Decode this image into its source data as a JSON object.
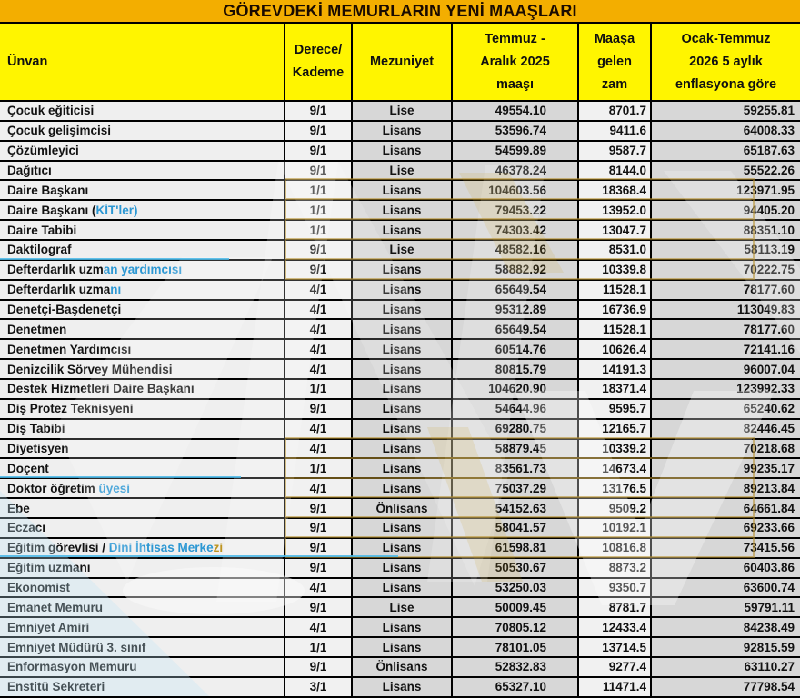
{
  "colors": {
    "title_bg": "#F3AE00",
    "header_bg": "#FFF500",
    "text": "#121212",
    "gold_text": "#BE9420",
    "blue_text": "#2B97D3",
    "col_gray": "#D7D7D7",
    "col_light": "#F1F1F1",
    "unvan_bg": "#EFEFEF",
    "border": "#000000",
    "watermark_gold": "#B8902A",
    "watermark_cyan": "#49B8E8"
  },
  "watermark": "ntv-logo",
  "chart_data": {
    "type": "table",
    "title": "GÖREVDEKİ MEMURLARIN YENİ MAAŞLARI",
    "column_keys": [
      "unvan",
      "derece",
      "mezuniyet",
      "maas_2025",
      "zam",
      "ocak_2026"
    ],
    "columns": [
      "Ünvan",
      "Derece/Kademe",
      "Mezuniyet",
      "Temmuz - Aralık 2025 maaşı",
      "Maaşa gelen zam",
      "Ocak-Temmuz 2026 5 aylık enflasyona göre"
    ],
    "header_lines": [
      [
        "Ünvan"
      ],
      [
        "Derece/",
        "Kademe"
      ],
      [
        "Mezuniyet"
      ],
      [
        "Temmuz -",
        "Aralık 2025",
        "maaşı"
      ],
      [
        "Maaşa",
        "gelen",
        "zam"
      ],
      [
        "Ocak-Temmuz",
        "2026 5 aylık",
        "enflasyona göre"
      ]
    ],
    "rows": [
      {
        "unvan_parts": [
          {
            "t": "Çocuk eğiticisi"
          }
        ],
        "derece": "9/1",
        "mezuniyet": "Lise",
        "maas_2025": "49554.10",
        "zam": "8701.7",
        "ocak_2026": "59255.81"
      },
      {
        "unvan_parts": [
          {
            "t": "Çocuk gelişimcisi"
          }
        ],
        "derece": "9/1",
        "mezuniyet": "Lisans",
        "maas_2025": "53596.74",
        "zam": "9411.6",
        "ocak_2026": "64008.33"
      },
      {
        "unvan_parts": [
          {
            "t": "Çözümleyici"
          }
        ],
        "derece": "9/1",
        "mezuniyet": "Lisans",
        "maas_2025": "54599.89",
        "zam": "9587.7",
        "ocak_2026": "65187.63"
      },
      {
        "unvan_parts": [
          {
            "t": "Dağıtıcı"
          }
        ],
        "derece": "9/1",
        "mezuniyet": "Lise",
        "maas_2025": "46378.24",
        "zam": "8144.0",
        "ocak_2026": "55522.26",
        "cell_colors": {
          "maas_2025": "gold"
        }
      },
      {
        "unvan_parts": [
          {
            "t": "Daire Başkanı"
          }
        ],
        "derece": "1/1",
        "mezuniyet": "Lisans",
        "maas_2025": "104603.56",
        "zam": "18368.4",
        "ocak_2026": "123971.95",
        "cell_colors": {
          "mezuniyet": "gold",
          "maas_2025": "gold"
        }
      },
      {
        "unvan_parts": [
          {
            "t": "Daire Başkanı ("
          },
          {
            "t": "KİT'ler)",
            "c": "blue"
          }
        ],
        "derece": "1/1",
        "mezuniyet": "Lisans",
        "maas_2025": "79453.22",
        "zam": "13952.0",
        "ocak_2026": "94405.20"
      },
      {
        "unvan_parts": [
          {
            "t": "Daire Tabibi"
          }
        ],
        "derece": "1/1",
        "mezuniyet": "Lisans",
        "maas_2025": "74303.42",
        "zam": "13047.7",
        "ocak_2026": "88351.10",
        "cell_colors": {
          "zam": "gold"
        }
      },
      {
        "unvan_parts": [
          {
            "t": "Daktilograf"
          }
        ],
        "derece": "9/1",
        "mezuniyet": "Lise",
        "maas_2025": "48582.16",
        "zam": "8531.0",
        "ocak_2026": "58113.19",
        "cell_colors": {
          "derece": "gold",
          "zam": "gold"
        }
      },
      {
        "unvan_parts": [
          {
            "t": "Defterdarlık uzm"
          },
          {
            "t": "an yardımcısı",
            "c": "blue"
          }
        ],
        "derece": "9/1",
        "mezuniyet": "Lisans",
        "maas_2025": "58882.92",
        "zam": "10339.8",
        "ocak_2026": "70222.75",
        "cell_colors": {
          "derece": "gold",
          "zam": "gold"
        }
      },
      {
        "unvan_parts": [
          {
            "t": "Defterdarlık uzma"
          },
          {
            "t": "nı",
            "c": "blue"
          }
        ],
        "derece": "4/1",
        "mezuniyet": "Lisans",
        "maas_2025": "65649.54",
        "zam": "11528.1",
        "ocak_2026": "78177.60"
      },
      {
        "unvan_parts": [
          {
            "t": "Denetçi-Başdenetçi"
          }
        ],
        "derece": "4/1",
        "mezuniyet": "Lisans",
        "maas_2025": "95312.89",
        "zam": "16736.9",
        "ocak_2026": "113049.83"
      },
      {
        "unvan_parts": [
          {
            "t": "Denetmen"
          }
        ],
        "derece": "4/1",
        "mezuniyet": "Lisans",
        "maas_2025": "65649.54",
        "zam": "11528.1",
        "ocak_2026": "78177.60"
      },
      {
        "unvan_parts": [
          {
            "t": "Denetmen Yardımcısı"
          }
        ],
        "derece": "4/1",
        "mezuniyet": "Lisans",
        "maas_2025": "60514.76",
        "zam": "10626.4",
        "ocak_2026": "72141.16"
      },
      {
        "unvan_parts": [
          {
            "t": "Denizcilik Sörvey Mühendisi"
          }
        ],
        "derece": "4/1",
        "mezuniyet": "Lisans",
        "maas_2025": "80815.79",
        "zam": "14191.3",
        "ocak_2026": "96007.04"
      },
      {
        "unvan_parts": [
          {
            "t": "Destek Hizmetleri Daire Başkanı"
          }
        ],
        "derece": "1/1",
        "mezuniyet": "Lisans",
        "maas_2025": "104620.90",
        "zam": "18371.4",
        "ocak_2026": "123992.33"
      },
      {
        "unvan_parts": [
          {
            "t": "Diş Protez Teknisyeni"
          }
        ],
        "derece": "9/1",
        "mezuniyet": "Lisans",
        "maas_2025": "54644.96",
        "zam": "9595.7",
        "ocak_2026": "65240.62"
      },
      {
        "unvan_parts": [
          {
            "t": "Diş Tabibi"
          }
        ],
        "derece": "4/1",
        "mezuniyet": "Lisans",
        "maas_2025": "69280.75",
        "zam": "12165.7",
        "ocak_2026": "82446.45"
      },
      {
        "unvan_parts": [
          {
            "t": "Diyetisyen"
          }
        ],
        "derece": "4/1",
        "mezuniyet": "Lisans",
        "maas_2025": "58879.45",
        "zam": "10339.2",
        "ocak_2026": "70218.68",
        "cell_colors": {
          "maas_2025": "gold"
        }
      },
      {
        "unvan_parts": [
          {
            "t": "Doçent"
          }
        ],
        "derece": "1/1",
        "mezuniyet": "Lisans",
        "maas_2025": "83561.73",
        "zam": "14673.4",
        "ocak_2026": "99235.17",
        "cell_colors": {
          "maas_2025": "gold"
        }
      },
      {
        "unvan_parts": [
          {
            "t": "Doktor öğretim "
          },
          {
            "t": "üyesi",
            "c": "blue"
          }
        ],
        "derece": "4/1",
        "mezuniyet": "Lisans",
        "maas_2025": "75037.29",
        "zam": "13176.5",
        "ocak_2026": "89213.84",
        "cell_colors": {
          "zam": "gold"
        }
      },
      {
        "unvan_parts": [
          {
            "t": "Ebe"
          }
        ],
        "derece": "9/1",
        "mezuniyet": "Önlisans",
        "maas_2025": "54152.63",
        "zam": "9509.2",
        "ocak_2026": "64661.84",
        "cell_colors": {
          "derece": "gold",
          "mezuniyet": "gold",
          "zam": "gold"
        }
      },
      {
        "unvan_parts": [
          {
            "t": "Eczacı"
          }
        ],
        "derece": "9/1",
        "mezuniyet": "Lisans",
        "maas_2025": "58041.57",
        "zam": "10192.1",
        "ocak_2026": "69233.66",
        "cell_colors": {
          "derece": "gold",
          "zam": "gold"
        }
      },
      {
        "unvan_parts": [
          {
            "t": "Eğitim görevlisi / "
          },
          {
            "t": "Dini İhtisas Merke",
            "c": "blue"
          },
          {
            "t": "zi",
            "c": "gold"
          }
        ],
        "derece": "9/1",
        "mezuniyet": "Lisans",
        "maas_2025": "61598.81",
        "zam": "10816.8",
        "ocak_2026": "73415.56"
      },
      {
        "unvan_parts": [
          {
            "t": "Eğitim uzmanı"
          }
        ],
        "derece": "9/1",
        "mezuniyet": "Lisans",
        "maas_2025": "50530.67",
        "zam": "8873.2",
        "ocak_2026": "60403.86"
      },
      {
        "unvan_parts": [
          {
            "t": "Ekonomist"
          }
        ],
        "derece": "4/1",
        "mezuniyet": "Lisans",
        "maas_2025": "53250.03",
        "zam": "9350.7",
        "ocak_2026": "63600.74"
      },
      {
        "unvan_parts": [
          {
            "t": "Emanet Memuru"
          }
        ],
        "derece": "9/1",
        "mezuniyet": "Lise",
        "maas_2025": "50009.45",
        "zam": "8781.7",
        "ocak_2026": "59791.11"
      },
      {
        "unvan_parts": [
          {
            "t": "Emniyet Amiri"
          }
        ],
        "derece": "4/1",
        "mezuniyet": "Lisans",
        "maas_2025": "70805.12",
        "zam": "12433.4",
        "ocak_2026": "84238.49"
      },
      {
        "unvan_parts": [
          {
            "t": "Emniyet Müdürü 3. sınıf"
          }
        ],
        "derece": "1/1",
        "mezuniyet": "Lisans",
        "maas_2025": "78101.05",
        "zam": "13714.5",
        "ocak_2026": "92815.59"
      },
      {
        "unvan_parts": [
          {
            "t": "Enformasyon Memuru"
          }
        ],
        "derece": "9/1",
        "mezuniyet": "Önlisans",
        "maas_2025": "52832.83",
        "zam": "9277.4",
        "ocak_2026": "63110.27"
      },
      {
        "unvan_parts": [
          {
            "t": "Enstitü Sekreteri"
          }
        ],
        "derece": "3/1",
        "mezuniyet": "Lisans",
        "maas_2025": "65327.10",
        "zam": "11471.4",
        "ocak_2026": "77798.54"
      }
    ]
  }
}
